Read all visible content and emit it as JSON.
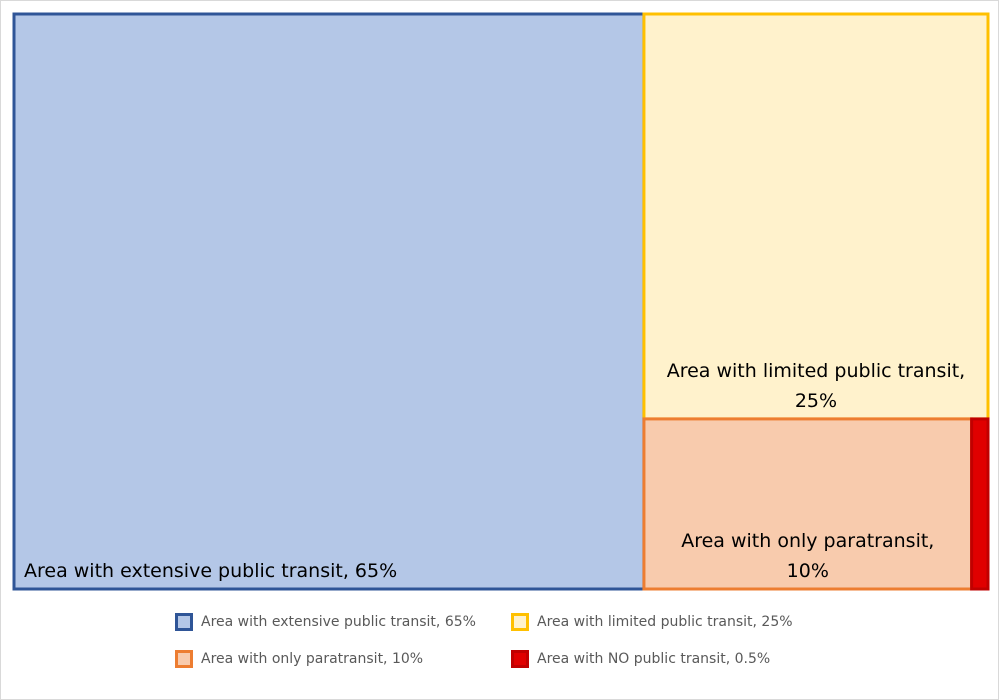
{
  "chart_data": {
    "type": "treemap",
    "title": "",
    "items": [
      {
        "name": "Area with extensive public transit, 65%",
        "value": 65,
        "label_lines": [
          "Area with extensive public transit, 65%"
        ],
        "fill": "#b4c7e7",
        "stroke": "#2f5597"
      },
      {
        "name": "Area with limited public transit, 25%",
        "value": 25,
        "label_lines": [
          "Area with limited public transit,",
          "25%"
        ],
        "fill": "#fff2cc",
        "stroke": "#ffc000"
      },
      {
        "name": "Area with only paratransit, 10%",
        "value": 10,
        "label_lines": [
          "Area with only paratransit,",
          "10%"
        ],
        "fill": "#f8cbad",
        "stroke": "#ed7d31"
      },
      {
        "name": "Area with NO public transit, 0.5%",
        "value": 0.5,
        "label_lines": [],
        "fill": "#e00000",
        "stroke": "#c00000"
      }
    ],
    "legend": {
      "position": "bottom",
      "entries": [
        "Area with extensive public transit, 65%",
        "Area with limited public transit, 25%",
        "Area with only paratransit, 10%",
        "Area with NO public transit, 0.5%"
      ]
    }
  }
}
